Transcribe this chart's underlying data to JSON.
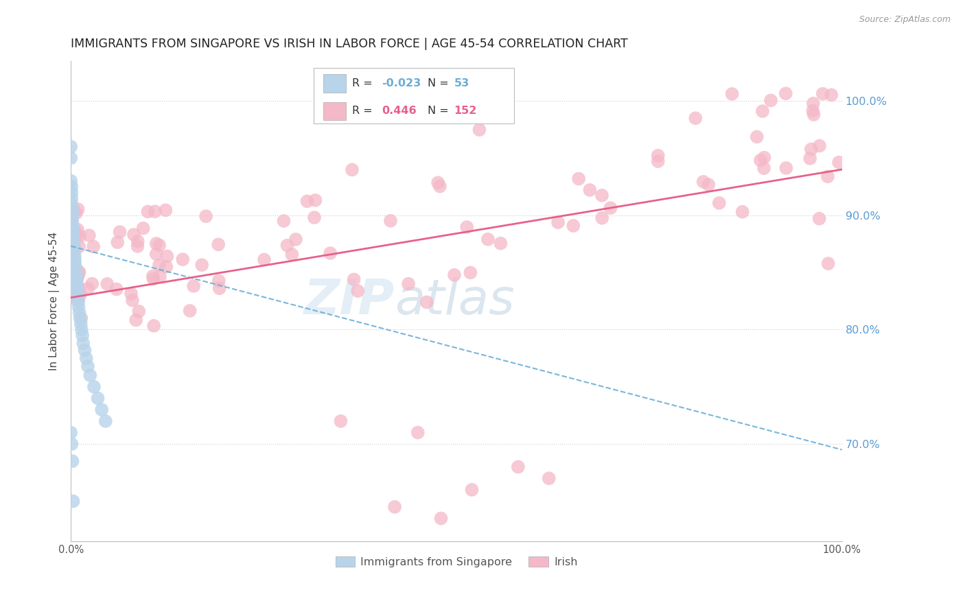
{
  "title": "IMMIGRANTS FROM SINGAPORE VS IRISH IN LABOR FORCE | AGE 45-54 CORRELATION CHART",
  "source": "Source: ZipAtlas.com",
  "ylabel": "In Labor Force | Age 45-54",
  "xlim": [
    0.0,
    1.0
  ],
  "ylim": [
    0.615,
    1.035
  ],
  "yticks": [
    0.7,
    0.8,
    0.9,
    1.0
  ],
  "ytick_labels": [
    "70.0%",
    "80.0%",
    "90.0%",
    "100.0%"
  ],
  "xticks": [
    0.0,
    0.1,
    0.2,
    0.3,
    0.4,
    0.5,
    0.6,
    0.7,
    0.8,
    0.9,
    1.0
  ],
  "xtick_labels": [
    "0.0%",
    "",
    "",
    "",
    "",
    "",
    "",
    "",
    "",
    "",
    "100.0%"
  ],
  "watermark_zip": "ZIP",
  "watermark_atlas": "atlas",
  "legend_R1": "-0.023",
  "legend_N1": "53",
  "legend_R2": "0.446",
  "legend_N2": "152",
  "singapore_line_color": "#6baed6",
  "irish_line_color": "#e8608a",
  "scatter_singapore_color": "#b8d4ea",
  "scatter_irish_color": "#f4b8c8",
  "title_fontsize": 12.5,
  "axis_label_fontsize": 11,
  "tick_fontsize": 10.5,
  "right_tick_color": "#5b9bd5",
  "background_color": "#ffffff",
  "grid_color": "#cccccc",
  "sg_line_y0": 0.873,
  "sg_line_y1": 0.695,
  "ir_line_y0": 0.828,
  "ir_line_y1": 0.94
}
